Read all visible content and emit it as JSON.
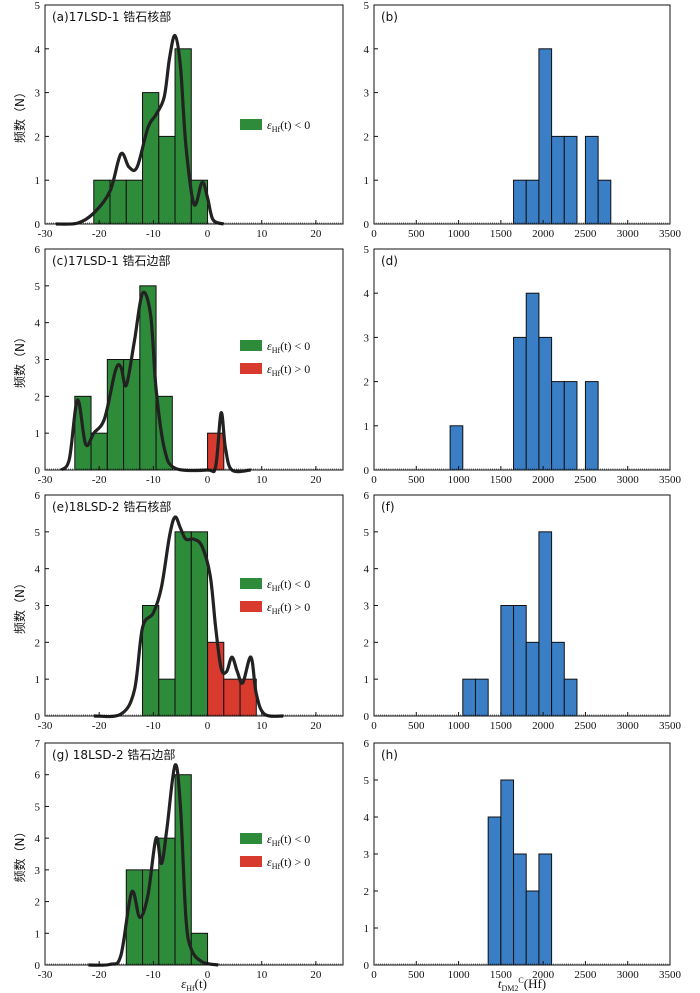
{
  "figure": {
    "legend": {
      "neg": {
        "label": "ε",
        "sub": "Hf",
        "rest": "(t) < 0",
        "color": "#2e8b3a"
      },
      "pos": {
        "label": "ε",
        "sub": "Hf",
        "rest": "(t) > 0",
        "color": "#d83a2e"
      }
    },
    "bar_color_blue": "#3a7ec6",
    "curve_color": "#222222",
    "y_axis_label": "频数（N）",
    "x_axis_label_left": {
      "pre": "ε",
      "sub": "Hf",
      "post": "(t)"
    },
    "x_axis_label_right": {
      "pre": "t",
      "sub": "DM2",
      "sup": "C",
      "post": "(Hf)"
    }
  },
  "chart_data": [
    {
      "id": "a",
      "type": "bar",
      "title": "(a)17LSD-1  锆石核部",
      "xlim": [
        -30,
        25
      ],
      "ylim": [
        0,
        5
      ],
      "xticks": [
        -30,
        -20,
        -10,
        0,
        10,
        20
      ],
      "yticks": [
        0,
        1,
        2,
        3,
        4,
        5
      ],
      "bins": [
        {
          "x0": -21,
          "x1": -18,
          "value": 1,
          "color": "neg"
        },
        {
          "x0": -18,
          "x1": -15,
          "value": 1,
          "color": "neg"
        },
        {
          "x0": -15,
          "x1": -12,
          "value": 1,
          "color": "neg"
        },
        {
          "x0": -12,
          "x1": -9,
          "value": 3,
          "color": "neg"
        },
        {
          "x0": -9,
          "x1": -6,
          "value": 2,
          "color": "neg"
        },
        {
          "x0": -6,
          "x1": -3,
          "value": 4,
          "color": "neg"
        },
        {
          "x0": -3,
          "x1": 0,
          "value": 1,
          "color": "neg"
        }
      ],
      "curve": [
        [
          -28,
          0
        ],
        [
          -24,
          0.02
        ],
        [
          -21,
          0.25
        ],
        [
          -18,
          0.75
        ],
        [
          -16,
          1.6
        ],
        [
          -14.5,
          1.3
        ],
        [
          -13,
          1.3
        ],
        [
          -11,
          2.2
        ],
        [
          -9.5,
          2.5
        ],
        [
          -8,
          2.9
        ],
        [
          -7,
          3.8
        ],
        [
          -6,
          4.3
        ],
        [
          -5,
          3.6
        ],
        [
          -4,
          1.8
        ],
        [
          -2.5,
          0.45
        ],
        [
          -1,
          0.95
        ],
        [
          0,
          0.6
        ],
        [
          1,
          0.1
        ],
        [
          3,
          0
        ]
      ],
      "legend": [
        "neg"
      ]
    },
    {
      "id": "b",
      "type": "bar",
      "title": "(b)",
      "xlim": [
        0,
        3500
      ],
      "ylim": [
        0,
        5
      ],
      "xticks": [
        0,
        500,
        1000,
        1500,
        2000,
        2500,
        3000,
        3500
      ],
      "yticks": [
        0,
        1,
        2,
        3,
        4,
        5
      ],
      "bins": [
        {
          "x0": 1650,
          "x1": 1800,
          "value": 1,
          "color": "blue"
        },
        {
          "x0": 1800,
          "x1": 1950,
          "value": 1,
          "color": "blue"
        },
        {
          "x0": 1950,
          "x1": 2100,
          "value": 4,
          "color": "blue"
        },
        {
          "x0": 2100,
          "x1": 2250,
          "value": 2,
          "color": "blue"
        },
        {
          "x0": 2250,
          "x1": 2400,
          "value": 2,
          "color": "blue"
        },
        {
          "x0": 2500,
          "x1": 2650,
          "value": 2,
          "color": "blue"
        },
        {
          "x0": 2650,
          "x1": 2800,
          "value": 1,
          "color": "blue"
        }
      ]
    },
    {
      "id": "c",
      "type": "bar",
      "title": "(c)17LSD-1  锆石边部",
      "xlim": [
        -30,
        25
      ],
      "ylim": [
        0,
        6
      ],
      "xticks": [
        -30,
        -20,
        -10,
        0,
        10,
        20
      ],
      "yticks": [
        0,
        1,
        2,
        3,
        4,
        5,
        6
      ],
      "bins": [
        {
          "x0": -24.5,
          "x1": -21.5,
          "value": 2,
          "color": "neg"
        },
        {
          "x0": -21.5,
          "x1": -18.5,
          "value": 1,
          "color": "neg"
        },
        {
          "x0": -18.5,
          "x1": -15.5,
          "value": 3,
          "color": "neg"
        },
        {
          "x0": -15.5,
          "x1": -12.5,
          "value": 3,
          "color": "neg"
        },
        {
          "x0": -12.5,
          "x1": -9.5,
          "value": 5,
          "color": "neg"
        },
        {
          "x0": -9.5,
          "x1": -6.5,
          "value": 2,
          "color": "neg"
        },
        {
          "x0": 0,
          "x1": 3,
          "value": 1,
          "color": "pos"
        }
      ],
      "curve": [
        [
          -27,
          0
        ],
        [
          -25.5,
          0.3
        ],
        [
          -24,
          1.9
        ],
        [
          -22.5,
          0.7
        ],
        [
          -21,
          1
        ],
        [
          -19,
          1.4
        ],
        [
          -17,
          2.7
        ],
        [
          -16,
          2.8
        ],
        [
          -15,
          2.3
        ],
        [
          -13.5,
          3.5
        ],
        [
          -12,
          4.8
        ],
        [
          -10.5,
          4.2
        ],
        [
          -9.5,
          2.2
        ],
        [
          -8,
          0.6
        ],
        [
          -6,
          0.05
        ],
        [
          0,
          0
        ],
        [
          1.5,
          0.1
        ],
        [
          2.5,
          1.55
        ],
        [
          3.3,
          0.6
        ],
        [
          4.5,
          0
        ],
        [
          8,
          0
        ]
      ],
      "legend": [
        "neg",
        "pos"
      ]
    },
    {
      "id": "d",
      "type": "bar",
      "title": "(d)",
      "xlim": [
        0,
        3500
      ],
      "ylim": [
        0,
        5
      ],
      "xticks": [
        0,
        500,
        1000,
        1500,
        2000,
        2500,
        3000,
        3500
      ],
      "yticks": [
        0,
        1,
        2,
        3,
        4,
        5
      ],
      "bins": [
        {
          "x0": 900,
          "x1": 1050,
          "value": 1,
          "color": "blue"
        },
        {
          "x0": 1650,
          "x1": 1800,
          "value": 3,
          "color": "blue"
        },
        {
          "x0": 1800,
          "x1": 1950,
          "value": 4,
          "color": "blue"
        },
        {
          "x0": 1950,
          "x1": 2100,
          "value": 3,
          "color": "blue"
        },
        {
          "x0": 2100,
          "x1": 2250,
          "value": 2,
          "color": "blue"
        },
        {
          "x0": 2250,
          "x1": 2400,
          "value": 2,
          "color": "blue"
        },
        {
          "x0": 2500,
          "x1": 2650,
          "value": 2,
          "color": "blue"
        }
      ]
    },
    {
      "id": "e",
      "type": "bar",
      "title": "(e)18LSD-2  锆石核部",
      "xlim": [
        -30,
        25
      ],
      "ylim": [
        0,
        6
      ],
      "xticks": [
        -30,
        -20,
        -10,
        0,
        10,
        20
      ],
      "yticks": [
        0,
        1,
        2,
        3,
        4,
        5,
        6
      ],
      "bins": [
        {
          "x0": -12,
          "x1": -9,
          "value": 3,
          "color": "neg"
        },
        {
          "x0": -9,
          "x1": -6,
          "value": 1,
          "color": "neg"
        },
        {
          "x0": -6,
          "x1": -3,
          "value": 5,
          "color": "neg"
        },
        {
          "x0": -3,
          "x1": 0,
          "value": 5,
          "color": "neg"
        },
        {
          "x0": 0,
          "x1": 3,
          "value": 2,
          "color": "pos"
        },
        {
          "x0": 3,
          "x1": 6,
          "value": 1,
          "color": "pos"
        },
        {
          "x0": 6,
          "x1": 9,
          "value": 1,
          "color": "pos"
        }
      ],
      "curve": [
        [
          -21,
          0
        ],
        [
          -16,
          0.05
        ],
        [
          -13.5,
          0.7
        ],
        [
          -12,
          2.4
        ],
        [
          -10,
          2.8
        ],
        [
          -8.5,
          3.5
        ],
        [
          -7,
          4.9
        ],
        [
          -6,
          5.4
        ],
        [
          -5,
          5.1
        ],
        [
          -4,
          4.8
        ],
        [
          -2.5,
          4.8
        ],
        [
          -1,
          4.6
        ],
        [
          0.5,
          3.8
        ],
        [
          1.5,
          2.4
        ],
        [
          2.5,
          1.3
        ],
        [
          3.5,
          1.2
        ],
        [
          4.5,
          1.6
        ],
        [
          5.5,
          1.2
        ],
        [
          6.5,
          0.9
        ],
        [
          8,
          1.6
        ],
        [
          9,
          0.6
        ],
        [
          10.5,
          0.05
        ],
        [
          14,
          0
        ]
      ],
      "legend": [
        "neg",
        "pos"
      ]
    },
    {
      "id": "f",
      "type": "bar",
      "title": "(f)",
      "xlim": [
        0,
        3500
      ],
      "ylim": [
        0,
        6
      ],
      "xticks": [
        0,
        500,
        1000,
        1500,
        2000,
        2500,
        3000,
        3500
      ],
      "yticks": [
        0,
        1,
        2,
        3,
        4,
        5,
        6
      ],
      "bins": [
        {
          "x0": 1050,
          "x1": 1200,
          "value": 1,
          "color": "blue"
        },
        {
          "x0": 1200,
          "x1": 1350,
          "value": 1,
          "color": "blue"
        },
        {
          "x0": 1500,
          "x1": 1650,
          "value": 3,
          "color": "blue"
        },
        {
          "x0": 1650,
          "x1": 1800,
          "value": 3,
          "color": "blue"
        },
        {
          "x0": 1800,
          "x1": 1950,
          "value": 2,
          "color": "blue"
        },
        {
          "x0": 1950,
          "x1": 2100,
          "value": 5,
          "color": "blue"
        },
        {
          "x0": 2100,
          "x1": 2250,
          "value": 2,
          "color": "blue"
        },
        {
          "x0": 2250,
          "x1": 2400,
          "value": 1,
          "color": "blue"
        }
      ]
    },
    {
      "id": "g",
      "type": "bar",
      "title": "(g) 18LSD-2 锆石边部",
      "xlim": [
        -30,
        25
      ],
      "ylim": [
        0,
        7
      ],
      "xticks": [
        -30,
        -20,
        -10,
        0,
        10,
        20
      ],
      "yticks": [
        0,
        1,
        2,
        3,
        4,
        5,
        6,
        7
      ],
      "bins": [
        {
          "x0": -15,
          "x1": -12,
          "value": 3,
          "color": "neg"
        },
        {
          "x0": -12,
          "x1": -9,
          "value": 3,
          "color": "neg"
        },
        {
          "x0": -9,
          "x1": -6,
          "value": 4,
          "color": "neg"
        },
        {
          "x0": -6,
          "x1": -3,
          "value": 6,
          "color": "neg"
        },
        {
          "x0": -3,
          "x1": 0,
          "value": 1,
          "color": "neg"
        }
      ],
      "curve": [
        [
          -22,
          0
        ],
        [
          -18,
          0.02
        ],
        [
          -16,
          0.3
        ],
        [
          -14,
          2.3
        ],
        [
          -12.5,
          1.5
        ],
        [
          -11,
          2.2
        ],
        [
          -9.5,
          4.0
        ],
        [
          -8.5,
          3.2
        ],
        [
          -7.5,
          4.3
        ],
        [
          -6,
          6.3
        ],
        [
          -5,
          5.0
        ],
        [
          -4,
          1.5
        ],
        [
          -3,
          0.5
        ],
        [
          -1,
          0.1
        ],
        [
          2,
          0
        ]
      ],
      "legend": [
        "neg",
        "pos"
      ]
    },
    {
      "id": "h",
      "type": "bar",
      "title": "(h)",
      "xlim": [
        0,
        3500
      ],
      "ylim": [
        0,
        6
      ],
      "xticks": [
        0,
        500,
        1000,
        1500,
        2000,
        2500,
        3000,
        3500
      ],
      "yticks": [
        0,
        1,
        2,
        3,
        4,
        5,
        6
      ],
      "bins": [
        {
          "x0": 1350,
          "x1": 1500,
          "value": 4,
          "color": "blue"
        },
        {
          "x0": 1500,
          "x1": 1650,
          "value": 5,
          "color": "blue"
        },
        {
          "x0": 1650,
          "x1": 1800,
          "value": 3,
          "color": "blue"
        },
        {
          "x0": 1800,
          "x1": 1950,
          "value": 2,
          "color": "blue"
        },
        {
          "x0": 1950,
          "x1": 2100,
          "value": 3,
          "color": "blue"
        }
      ]
    }
  ]
}
